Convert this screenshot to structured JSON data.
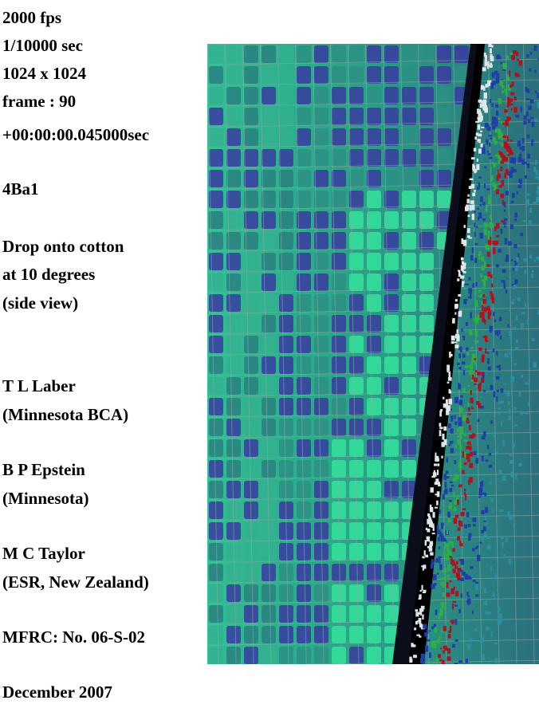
{
  "info": {
    "fps": "2000 fps",
    "shutter": "1/10000 sec",
    "resolution": "1024 x 1024",
    "frame": "frame : 90",
    "timestamp": "+00:00:00.045000sec"
  },
  "sample_id": "4Ba1",
  "description": [
    "Drop onto cotton",
    "at 10 degrees",
    "(side view)"
  ],
  "authors": [
    {
      "name": "T L Laber",
      "affiliation": "(Minnesota BCA)"
    },
    {
      "name": "B P Epstein",
      "affiliation": "(Minnesota)"
    },
    {
      "name": "M C Taylor",
      "affiliation": "(ESR, New Zealand)"
    }
  ],
  "reference": "MFRC:  No. 06-S-02",
  "date": "December 2007",
  "image": {
    "subject": "false-color high-speed frame of blood drop on cotton weave",
    "palette": {
      "cell_green": "#33e39c",
      "cell_blue": "#3a3ba0",
      "grid_line": "#7a8f8a",
      "shadow": "#000000",
      "streak_red": "#b4101c",
      "streak_green": "#2db042",
      "fabric_blue": "#1f3fa8"
    }
  }
}
